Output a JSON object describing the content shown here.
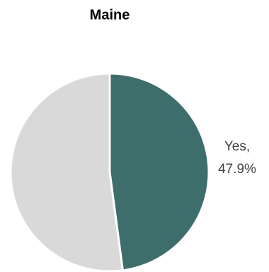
{
  "chart_data": {
    "type": "pie",
    "title": "Maine",
    "categories": [
      "Yes,",
      null
    ],
    "values": [
      47.9,
      52.1
    ],
    "value_labels": [
      "47.9%",
      null
    ],
    "colors": [
      "#3d6e6b",
      "#d9d9d9"
    ]
  }
}
